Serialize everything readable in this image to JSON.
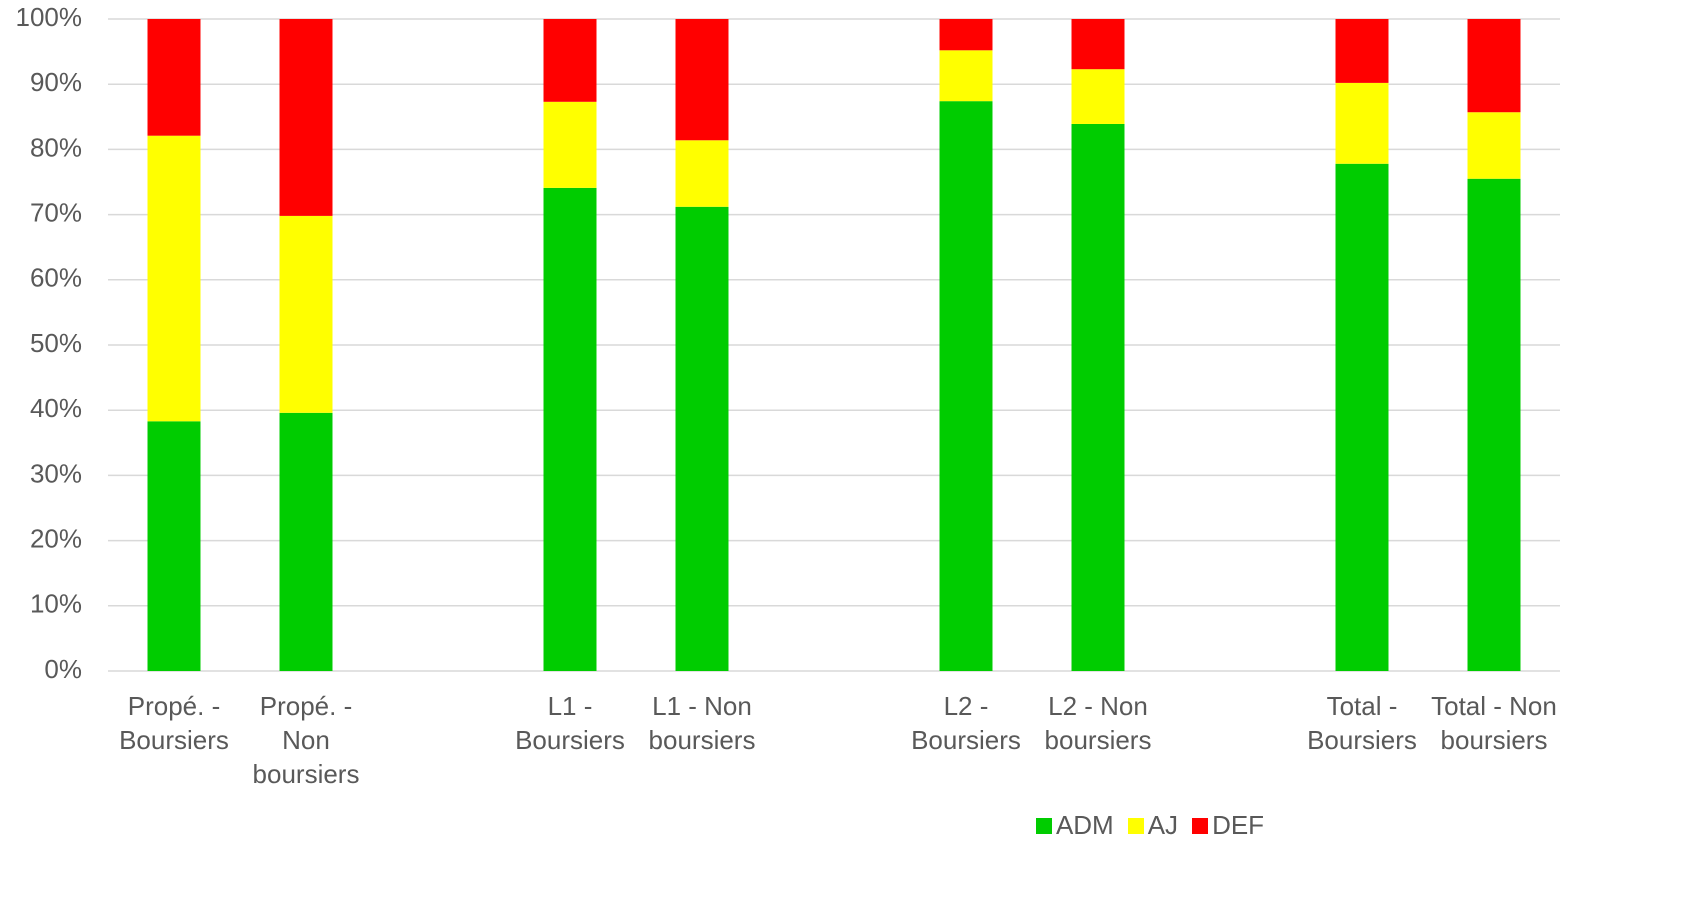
{
  "chart_data": {
    "type": "stacked_bar_100",
    "categories": [
      "Propé. - Boursiers",
      "Propé. - Non boursiers",
      null,
      "L1 - Boursiers",
      "L1 - Non boursiers",
      null,
      "L2 - Boursiers",
      "L2 - Non boursiers",
      null,
      "Total - Boursiers",
      "Total - Non boursiers"
    ],
    "series": [
      {
        "name": "ADM",
        "color": "#00cc00",
        "values": [
          38.3,
          39.6,
          null,
          74.1,
          71.2,
          null,
          87.4,
          83.9,
          null,
          77.8,
          75.5
        ]
      },
      {
        "name": "AJ",
        "color": "#ffff00",
        "values": [
          43.8,
          30.2,
          null,
          13.2,
          10.2,
          null,
          7.8,
          8.4,
          null,
          12.4,
          10.2
        ]
      },
      {
        "name": "DEF",
        "color": "#ff0000",
        "values": [
          17.9,
          30.2,
          null,
          12.7,
          18.6,
          null,
          4.8,
          7.7,
          null,
          9.8,
          14.3
        ]
      }
    ],
    "ylim": [
      0,
      100
    ],
    "yticks": [
      {
        "value": 0,
        "label": "0%"
      },
      {
        "value": 10,
        "label": "10%"
      },
      {
        "value": 20,
        "label": "20%"
      },
      {
        "value": 30,
        "label": "30%"
      },
      {
        "value": 40,
        "label": "40%"
      },
      {
        "value": 50,
        "label": "50%"
      },
      {
        "value": 60,
        "label": "60%"
      },
      {
        "value": 70,
        "label": "70%"
      },
      {
        "value": 80,
        "label": "80%"
      },
      {
        "value": 90,
        "label": "90%"
      },
      {
        "value": 100,
        "label": "100%"
      }
    ],
    "grid": true,
    "legend": "bottom"
  }
}
